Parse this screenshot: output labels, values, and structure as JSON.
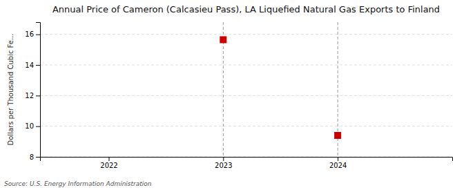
{
  "chart_data": {
    "type": "scatter",
    "title": "Annual Price of Cameron (Calcasieu Pass), LA Liquefied Natural Gas Exports to Finland",
    "ylabel": "Dollars per Thousand Cubic Fe...",
    "annotations": [
      "Source: U.S. Energy Information Administration"
    ],
    "x": [
      2023,
      2024
    ],
    "values": [
      15.65,
      9.4
    ],
    "color": "#cc0000",
    "marker": "square",
    "xlim": [
      2021.4,
      2025.0
    ],
    "ylim": [
      8,
      16.8
    ],
    "xticks": [
      2022,
      2023,
      2024
    ],
    "yticks": [
      8,
      10,
      12,
      14,
      16
    ],
    "grid": true
  }
}
